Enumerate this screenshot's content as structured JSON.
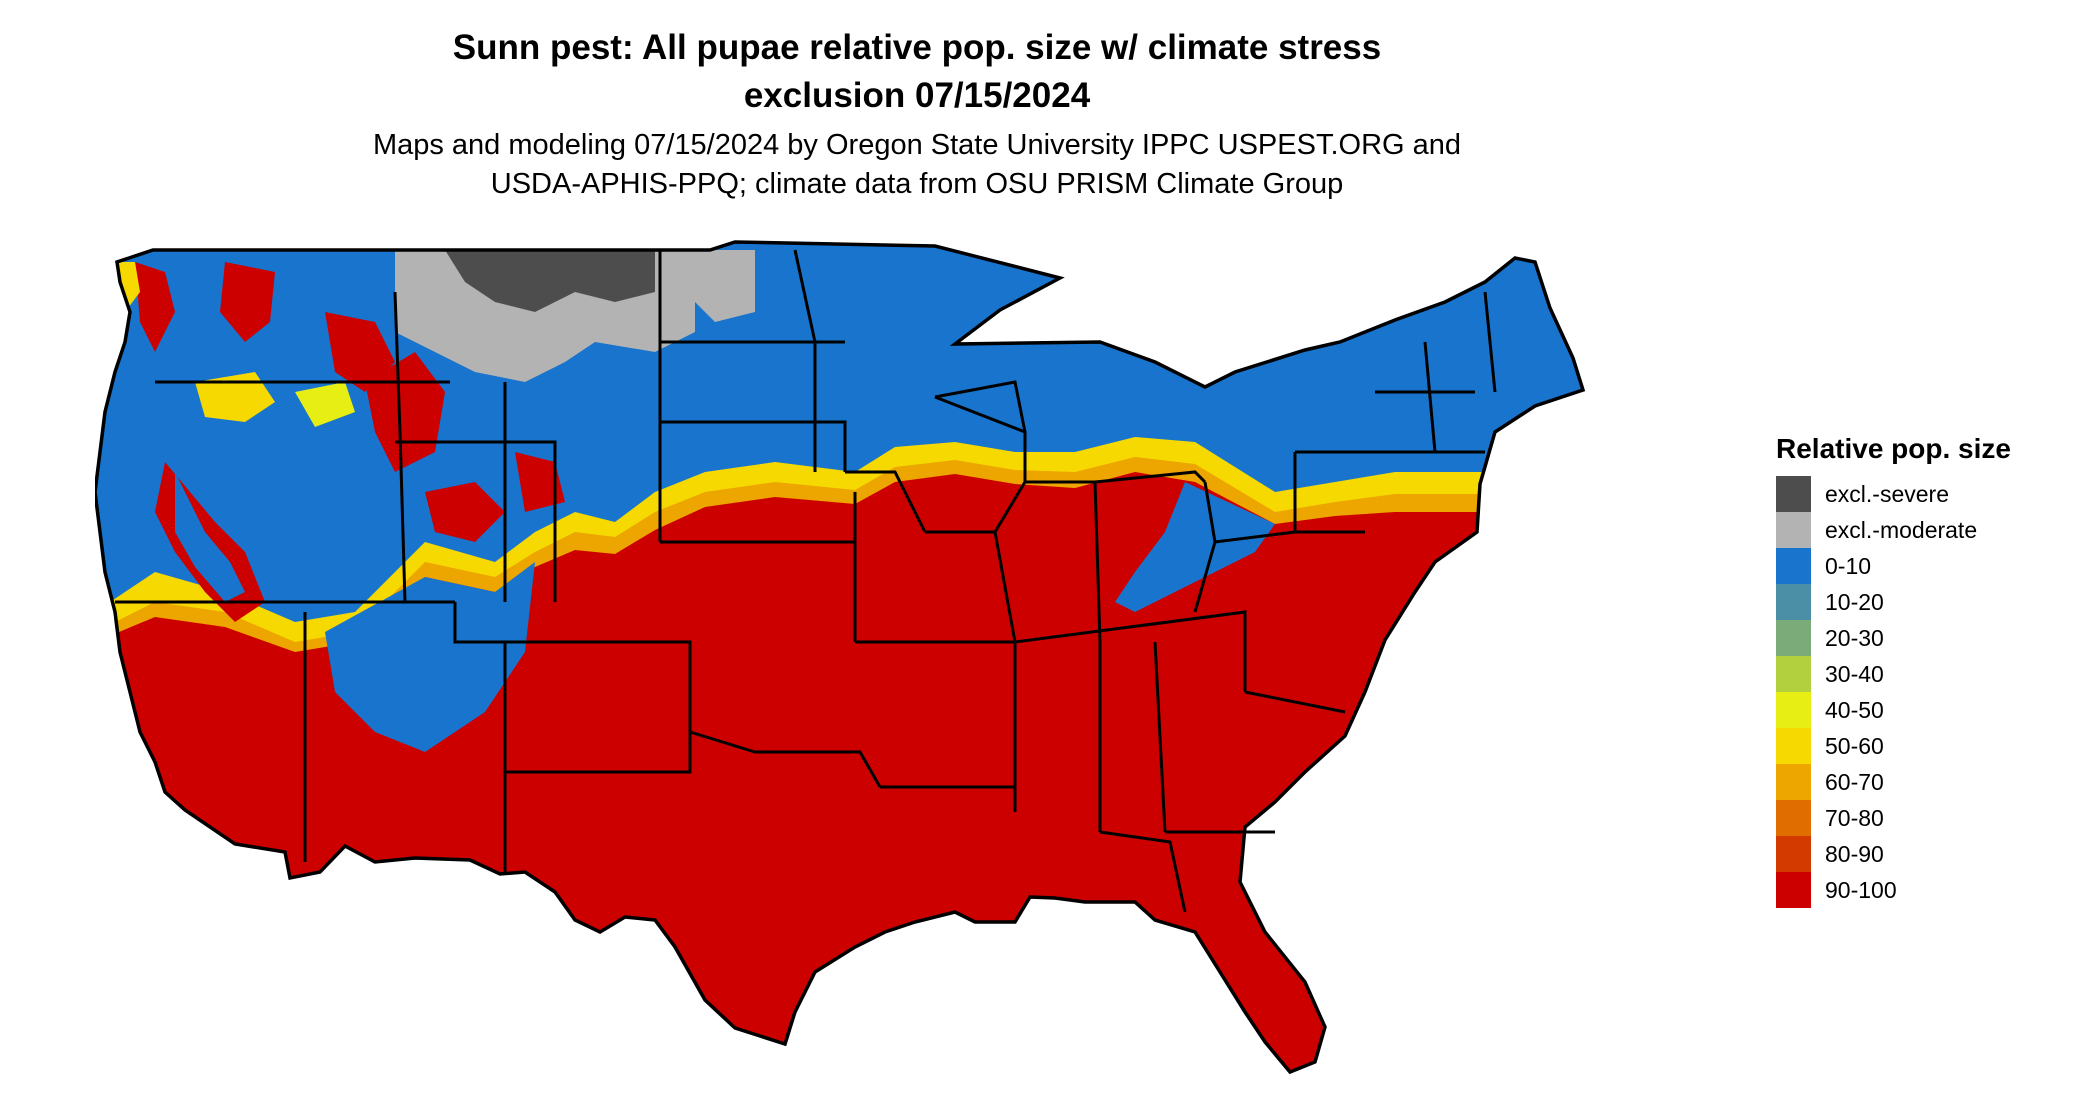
{
  "title_line1": "Sunn pest: All pupae relative pop. size w/ climate stress",
  "title_line2": "exclusion 07/15/2024",
  "subtitle_line1": "Maps and modeling 07/15/2024 by Oregon State University IPPC USPEST.ORG and",
  "subtitle_line2": "USDA-APHIS-PPQ; climate data from OSU PRISM Climate Group",
  "legend": {
    "title": "Relative pop. size",
    "items": [
      {
        "label": "excl.-severe",
        "color": "#4d4d4d"
      },
      {
        "label": "excl.-moderate",
        "color": "#b3b3b3"
      },
      {
        "label": "0-10",
        "color": "#1874cd"
      },
      {
        "label": "10-20",
        "color": "#4a8fa5"
      },
      {
        "label": "20-30",
        "color": "#7bab78"
      },
      {
        "label": "30-40",
        "color": "#b2cf3d"
      },
      {
        "label": "40-50",
        "color": "#e6ee13"
      },
      {
        "label": "50-60",
        "color": "#f6d900"
      },
      {
        "label": "60-70",
        "color": "#eda500"
      },
      {
        "label": "70-80",
        "color": "#e06d00"
      },
      {
        "label": "80-90",
        "color": "#d23a00"
      },
      {
        "label": "90-100",
        "color": "#cd0000"
      }
    ]
  }
}
